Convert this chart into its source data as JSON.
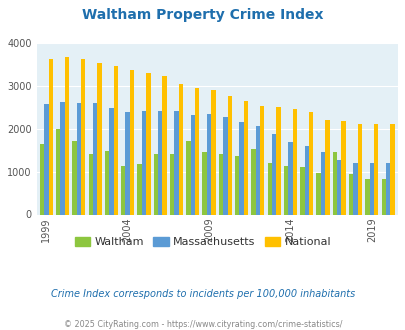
{
  "title": "Waltham Property Crime Index",
  "years": [
    1999,
    2000,
    2001,
    2002,
    2003,
    2004,
    2005,
    2006,
    2007,
    2008,
    2009,
    2010,
    2011,
    2012,
    2013,
    2014,
    2015,
    2016,
    2017,
    2018,
    2019,
    2020
  ],
  "waltham": [
    1650,
    2000,
    1720,
    1400,
    1480,
    1130,
    1170,
    1400,
    1400,
    1720,
    1450,
    1420,
    1370,
    1520,
    1190,
    1130,
    1100,
    970,
    1450,
    950,
    830,
    830
  ],
  "massachusetts": [
    2570,
    2630,
    2610,
    2590,
    2490,
    2380,
    2410,
    2420,
    2420,
    2330,
    2350,
    2280,
    2160,
    2060,
    1870,
    1700,
    1590,
    1460,
    1270,
    1210,
    1200,
    1200
  ],
  "national": [
    3630,
    3660,
    3620,
    3530,
    3450,
    3360,
    3290,
    3230,
    3050,
    2960,
    2900,
    2760,
    2640,
    2520,
    2500,
    2470,
    2380,
    2200,
    2170,
    2100,
    2100,
    2100
  ],
  "colors": {
    "waltham": "#8dc63f",
    "massachusetts": "#5b9bd5",
    "national": "#ffc000"
  },
  "background_color": "#e4f0f6",
  "ylim": [
    0,
    4000
  ],
  "yticks": [
    0,
    1000,
    2000,
    3000,
    4000
  ],
  "xtick_years": [
    1999,
    2004,
    2009,
    2014,
    2019
  ],
  "legend_labels": [
    "Waltham",
    "Massachusetts",
    "National"
  ],
  "subtitle": "Crime Index corresponds to incidents per 100,000 inhabitants",
  "footer": "© 2025 CityRating.com - https://www.cityrating.com/crime-statistics/",
  "title_color": "#1f6fad",
  "subtitle_color": "#1f6fad",
  "footer_color": "#888888",
  "bar_width": 0.27
}
